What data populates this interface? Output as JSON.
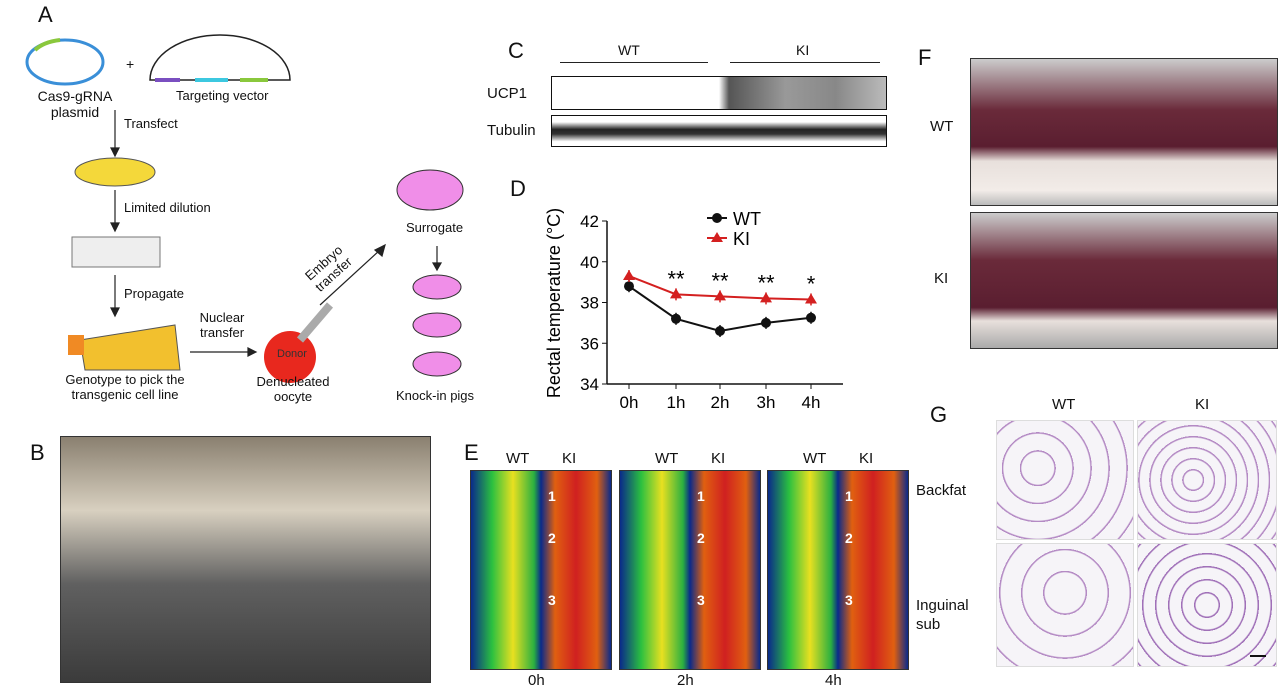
{
  "panels": {
    "a": "A",
    "b": "B",
    "c": "C",
    "d": "D",
    "e": "E",
    "f": "F",
    "g": "G"
  },
  "panel_a": {
    "plasmid": "Cas9-gRNA plasmid",
    "plus": "+",
    "vector": "Targeting vector",
    "transfect": "Transfect",
    "dilution": "Limited dilution",
    "propagate": "Propagate",
    "genotype": "Genotype to pick the transgenic cell line",
    "nuclear": "Nuclear transfer",
    "donor": "Donor",
    "oocyte": "Denucleated oocyte",
    "embryo": "Embryo transfer",
    "surrogate": "Surrogate",
    "knockin": "Knock-in pigs"
  },
  "panel_c": {
    "wt": "WT",
    "ki": "KI",
    "ucp1": "UCP1",
    "tubulin": "Tubulin"
  },
  "panel_e": {
    "wt": "WT",
    "ki": "KI",
    "times": [
      "0h",
      "2h",
      "4h"
    ],
    "regions": [
      "1",
      "2",
      "3"
    ]
  },
  "panel_f": {
    "wt": "WT",
    "ki": "KI"
  },
  "panel_g": {
    "wt": "WT",
    "ki": "KI",
    "backfat": "Backfat",
    "inguinal": "Inguinal sub"
  },
  "colors": {
    "wt": "#111111",
    "ki": "#d42020"
  },
  "chart_data": {
    "type": "line",
    "ylabel": "Rectal temperature (°C)",
    "xlabel": "",
    "categories": [
      "0h",
      "1h",
      "2h",
      "3h",
      "4h"
    ],
    "ylim": [
      34,
      42
    ],
    "yticks": [
      "34",
      "36",
      "38",
      "40",
      "42"
    ],
    "series": [
      {
        "name": "WT",
        "marker": "circle",
        "values": [
          38.8,
          37.2,
          36.6,
          37.0,
          37.25
        ]
      },
      {
        "name": "KI",
        "marker": "triangle",
        "values": [
          39.3,
          38.4,
          38.3,
          38.2,
          38.15
        ]
      }
    ],
    "annotations": [
      "",
      "**",
      "**",
      "**",
      "*"
    ],
    "legend": "top-right"
  }
}
